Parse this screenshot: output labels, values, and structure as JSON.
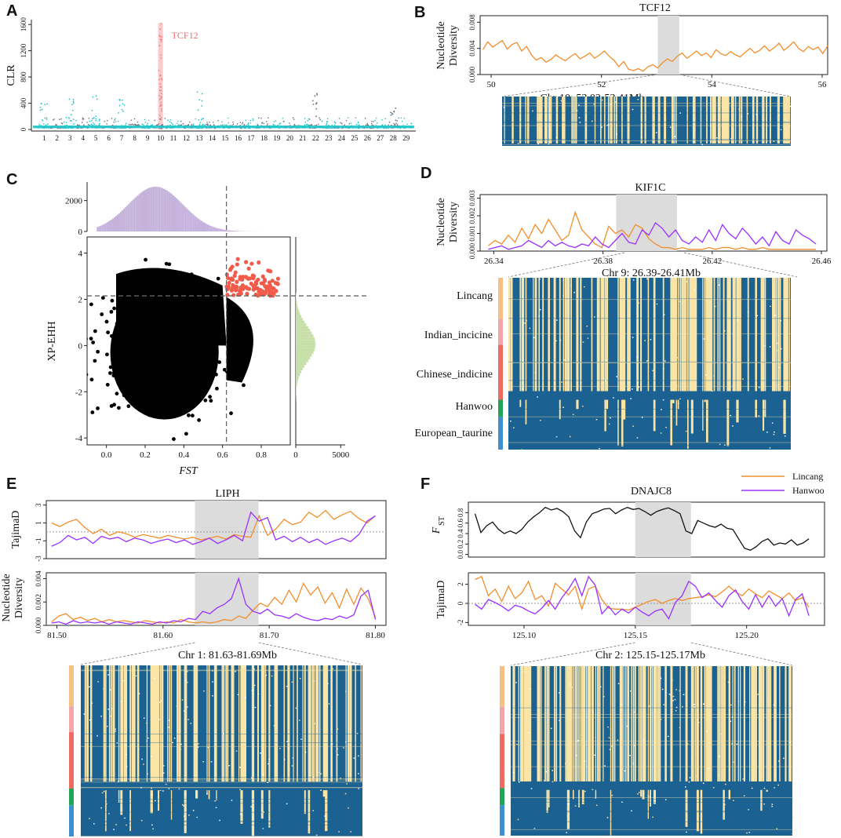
{
  "colors": {
    "lincang": "#f28e2b",
    "hanwoo": "#9b30ff",
    "heat_blue": "#1b6191",
    "heat_yellow": "#fbe5a6",
    "highlight": "#dcdcdc",
    "manhattan_cyan": "#22c5c8",
    "manhattan_grey": "#6b6f80",
    "manhattan_peak": "#f26b6b",
    "scatter_sel": "#f25a4a",
    "hist_purple": "#c5b2dc",
    "hist_green": "#c7dfa8",
    "pop_lincang": "#f6c085",
    "pop_indian": "#f1a7a7",
    "pop_chinese": "#ee6b62",
    "pop_hanwoo": "#1fa555",
    "pop_european": "#3d8fcf"
  },
  "labels": {
    "a": "A",
    "b": "B",
    "c": "C",
    "d": "D",
    "e": "E",
    "f": "F"
  },
  "legend": {
    "lincang": "Lincang",
    "hanwoo": "Hanwoo"
  },
  "chart_data": [
    {
      "panel": "A",
      "type": "scatter",
      "ylabel": "CLR",
      "ylim": [
        0,
        1650
      ],
      "yticks": [
        0,
        400,
        800,
        1200,
        1600
      ],
      "chromosomes": [
        "1",
        "2",
        "3",
        "4",
        "5",
        "6",
        "7",
        "8",
        "9",
        "10",
        "11",
        "12",
        "13",
        "14",
        "15",
        "16",
        "17",
        "18",
        "19",
        "20",
        "21",
        "22",
        "23",
        "24",
        "25",
        "26",
        "27",
        "28",
        "29"
      ],
      "peak": {
        "label": "TCF12",
        "chromosome": "10",
        "value": 1620
      },
      "secondary_peaks": [
        {
          "chromosome": "1",
          "value": 420
        },
        {
          "chromosome": "3",
          "value": 480
        },
        {
          "chromosome": "5",
          "value": 560
        },
        {
          "chromosome": "7",
          "value": 460
        },
        {
          "chromosome": "13",
          "value": 640
        },
        {
          "chromosome": "22",
          "value": 560
        },
        {
          "chromosome": "28",
          "value": 390
        }
      ]
    },
    {
      "panel": "B",
      "type": "line",
      "title": "TCF12",
      "ylabel_lines": [
        "Nucleotide",
        "Diversity"
      ],
      "xlim": [
        49.8,
        56.1
      ],
      "xticks": [
        50,
        52,
        54,
        56
      ],
      "ylim": [
        0,
        0.009
      ],
      "yticks": [
        0.0,
        0.004,
        0.008
      ],
      "ytick_labels": [
        "0.000",
        "0.004",
        "0.008"
      ],
      "highlight": [
        53.02,
        53.41
      ],
      "region_label": "Chr 10: 53.02-53.41Mb",
      "series": [
        {
          "name": "Lincang",
          "values": [
            0.0038,
            0.005,
            0.0042,
            0.0047,
            0.0052,
            0.0039,
            0.0046,
            0.0049,
            0.0036,
            0.0043,
            0.003,
            0.0022,
            0.0026,
            0.0019,
            0.0023,
            0.003,
            0.0025,
            0.0021,
            0.0027,
            0.0032,
            0.0024,
            0.0028,
            0.0033,
            0.0025,
            0.003,
            0.0036,
            0.0028,
            0.0022,
            0.0012,
            0.002,
            0.0008,
            0.0006,
            0.0009,
            0.0005,
            0.0012,
            0.0015,
            0.001,
            0.0018,
            0.0024,
            0.002,
            0.0028,
            0.0033,
            0.0025,
            0.003,
            0.0036,
            0.0029,
            0.0033,
            0.0026,
            0.0038,
            0.0032,
            0.0029,
            0.0035,
            0.003,
            0.0027,
            0.0034,
            0.004,
            0.0033,
            0.0037,
            0.0044,
            0.0036,
            0.0041,
            0.0048,
            0.0037,
            0.0043,
            0.005,
            0.004,
            0.0035,
            0.0043,
            0.0038,
            0.0042,
            0.0032,
            0.0044
          ]
        }
      ]
    },
    {
      "panel": "C",
      "type": "scatter",
      "xlabel": "FST",
      "ylabel": "XP-EHH",
      "xlim": [
        -0.1,
        0.95
      ],
      "ylim": [
        -4.3,
        4.7
      ],
      "xticks": [
        0.0,
        0.2,
        0.4,
        0.6,
        0.8
      ],
      "xtick_labels": [
        "0.0",
        "0.2",
        "0.4",
        "0.6",
        "0.8"
      ],
      "yticks": [
        -4,
        -2,
        0,
        2,
        4
      ],
      "ytick_labels": [
        "-4",
        "-2",
        "0",
        "2",
        "4"
      ],
      "thresholds": {
        "fst": 0.62,
        "xpehh": 2.15
      },
      "top_hist": {
        "ylim": [
          0,
          3200
        ],
        "yticks": [
          0,
          2000
        ],
        "ytick_labels": [
          "0",
          "2000"
        ],
        "peak_count": 2900,
        "peak_fst": 0.25
      },
      "right_hist": {
        "xlim": [
          0,
          5500
        ],
        "xticks": [
          0,
          5000
        ],
        "xtick_labels": [
          "0",
          "5000"
        ],
        "peak_count": 2200,
        "peak_xpehh": 0.0
      }
    },
    {
      "panel": "D",
      "type": "line",
      "title": "KIF1C",
      "ylabel_lines": [
        "Nucleotide",
        "Diversity"
      ],
      "xlim": [
        26.335,
        26.462
      ],
      "xticks": [
        26.34,
        26.38,
        26.42,
        26.46
      ],
      "xtick_labels": [
        "26.34",
        "26.38",
        "26.42",
        "26.46"
      ],
      "ylim": [
        0,
        0.0032
      ],
      "yticks": [
        0.0,
        0.001,
        0.002,
        0.003
      ],
      "ytick_labels": [
        "0.000",
        "0.001",
        "0.002",
        "0.003"
      ],
      "highlight": [
        26.39,
        26.41
      ],
      "region_label": "Chr 9: 26.39-26.41Mb",
      "populations": [
        "Lincang",
        "Indian_incicine",
        "Chinese_indicine",
        "Hanwoo",
        "European_taurine"
      ],
      "series": [
        {
          "name": "Lincang",
          "values": [
            0.0003,
            0.0006,
            0.0004,
            0.0009,
            0.0005,
            0.0013,
            0.0007,
            0.0015,
            0.001,
            0.0018,
            0.0012,
            0.0006,
            0.0009,
            0.0022,
            0.0012,
            0.0008,
            0.0004,
            0.0002,
            0.0014,
            0.001,
            0.0012,
            0.0008,
            0.0015,
            0.0013,
            0.0007,
            0.0004,
            0.0002,
            0.0002,
            0.0001,
            0.0002,
            0.0001,
            0.0001,
            0.0001,
            0.0002,
            0.0001,
            0.0002,
            0.0002,
            0.0001,
            0.0002,
            0.0001,
            0.0001,
            0.0002,
            0.0001,
            0.0001,
            0.0001,
            0.0001,
            0.0001,
            0.0001,
            0.0001,
            0.0001
          ]
        },
        {
          "name": "Hanwoo",
          "values": [
            0.0001,
            0.0002,
            0.0003,
            0.0001,
            0.0002,
            0.0003,
            0.0006,
            0.0004,
            0.0002,
            0.0006,
            0.0003,
            0.0005,
            0.0003,
            0.0002,
            0.0004,
            0.0003,
            0.0008,
            0.0004,
            0.0002,
            0.0006,
            0.001,
            0.0005,
            0.0004,
            0.0012,
            0.0009,
            0.0016,
            0.0013,
            0.0008,
            0.0012,
            0.0006,
            0.0004,
            0.0008,
            0.0005,
            0.0012,
            0.0006,
            0.0015,
            0.001,
            0.0007,
            0.0013,
            0.0009,
            0.0004,
            0.0008,
            0.0003,
            0.0011,
            0.0006,
            0.0004,
            0.0012,
            0.0009,
            0.0007,
            0.0004
          ]
        }
      ]
    },
    {
      "panel": "E",
      "type": "line",
      "title": "LIPH",
      "xlim": [
        81.49,
        81.81
      ],
      "xticks": [
        81.5,
        81.6,
        81.7,
        81.8
      ],
      "xtick_labels": [
        "81.50",
        "81.60",
        "81.70",
        "81.80"
      ],
      "highlight": [
        81.63,
        81.69
      ],
      "region_label": "Chr 1: 81.63-81.69Mb",
      "tracks": [
        {
          "ylabel": "TajimaD",
          "ylim": [
            -3,
            3.5
          ],
          "yticks": [
            -3,
            -1,
            1,
            3
          ],
          "ytick_labels": [
            "-3",
            "-1",
            "1",
            "3"
          ],
          "ref": 0,
          "series": [
            {
              "name": "Lincang",
              "values": [
                1.0,
                0.6,
                1.1,
                1.4,
                0.5,
                -0.2,
                0.3,
                -0.4,
                0.0,
                -0.2,
                -0.6,
                -0.3,
                -0.5,
                -0.7,
                -0.4,
                -0.6,
                -0.8,
                -0.6,
                -0.9,
                -0.7,
                -0.5,
                -0.8,
                -0.3,
                -0.5,
                -0.6,
                1.8,
                -0.4,
                0.3,
                1.4,
                0.8,
                1.1,
                2.2,
                1.6,
                2.4,
                1.4,
                1.9,
                2.3,
                1.5,
                1.0,
                1.8
              ]
            },
            {
              "name": "Hanwoo",
              "values": [
                -1.6,
                -1.2,
                -0.4,
                -0.9,
                -0.6,
                -1.3,
                -0.5,
                -0.8,
                -0.6,
                -1.1,
                -0.7,
                -0.9,
                -1.3,
                -1.0,
                -0.8,
                -1.2,
                -0.9,
                -1.4,
                -1.1,
                -0.7,
                -1.3,
                -0.9,
                -0.4,
                -1.0,
                2.2,
                1.2,
                1.6,
                -0.9,
                -0.5,
                -1.1,
                -0.6,
                -1.2,
                -0.8,
                -1.4,
                -1.0,
                -0.7,
                -1.1,
                -0.3,
                1.2,
                1.8
              ]
            }
          ]
        },
        {
          "ylabel_lines": [
            "Nucleotide",
            "Diversity"
          ],
          "ylim": [
            0,
            0.0045
          ],
          "yticks": [
            0.0,
            0.002,
            0.004
          ],
          "ytick_labels": [
            "0.000",
            "0.002",
            "0.004"
          ],
          "series": [
            {
              "name": "Lincang",
              "values": [
                0.0003,
                0.0008,
                0.001,
                0.0005,
                0.0007,
                0.0004,
                0.0006,
                0.0003,
                0.0005,
                0.0003,
                0.0004,
                0.0003,
                0.0002,
                0.0004,
                0.0003,
                0.0002,
                0.0003,
                0.0002,
                0.0005,
                0.0003,
                0.0002,
                0.0003,
                0.0002,
                0.0003,
                0.0005,
                0.0004,
                0.0008,
                0.0006,
                0.0013,
                0.0019,
                0.0016,
                0.0024,
                0.0018,
                0.003,
                0.002,
                0.0036,
                0.0026,
                0.0033,
                0.0019,
                0.0028,
                0.0015,
                0.0031,
                0.0018,
                0.0032,
                0.0023,
                0.0007
              ]
            },
            {
              "name": "Hanwoo",
              "values": [
                0.0002,
                0.0003,
                0.0001,
                0.0004,
                0.0002,
                0.0003,
                0.0002,
                0.0003,
                0.0001,
                0.0003,
                0.0002,
                0.0001,
                0.0003,
                0.0002,
                0.0001,
                0.0003,
                0.0002,
                0.0004,
                0.0003,
                0.0006,
                0.0005,
                0.0012,
                0.001,
                0.0015,
                0.0018,
                0.0023,
                0.004,
                0.0018,
                0.0012,
                0.001,
                0.0014,
                0.0009,
                0.0008,
                0.0006,
                0.001,
                0.0007,
                0.0005,
                0.0004,
                0.0006,
                0.0005,
                0.0008,
                0.0006,
                0.0009,
                0.0025,
                0.003,
                0.0005
              ]
            }
          ]
        }
      ]
    },
    {
      "panel": "F",
      "type": "line",
      "title": "DNAJC8",
      "xlim": [
        125.075,
        125.235
      ],
      "xticks": [
        125.1,
        125.15,
        125.2
      ],
      "xtick_labels": [
        "125.10",
        "125.15",
        "125.20"
      ],
      "highlight": [
        125.15,
        125.175
      ],
      "region_label": "Chr 2: 125.15-125.17Mb",
      "tracks": [
        {
          "ylabel": "FST",
          "ylim": [
            -0.05,
            1.0
          ],
          "yticks": [
            0.0,
            0.2,
            0.4,
            0.6,
            0.8
          ],
          "ytick_labels": [
            "0.0",
            "0.2",
            "0.4",
            "0.6",
            "0.8"
          ],
          "series": [
            {
              "name": "FST",
              "color": "#111111",
              "values": [
                0.78,
                0.42,
                0.55,
                0.62,
                0.48,
                0.4,
                0.45,
                0.4,
                0.48,
                0.62,
                0.72,
                0.8,
                0.9,
                0.85,
                0.88,
                0.82,
                0.72,
                0.45,
                0.32,
                0.62,
                0.78,
                0.82,
                0.87,
                0.88,
                0.78,
                0.85,
                0.9,
                0.86,
                0.88,
                0.82,
                0.75,
                0.82,
                0.86,
                0.89,
                0.84,
                0.78,
                0.45,
                0.4,
                0.65,
                0.6,
                0.55,
                0.52,
                0.58,
                0.5,
                0.48,
                0.3,
                0.12,
                0.08,
                0.15,
                0.25,
                0.3,
                0.18,
                0.22,
                0.2,
                0.28,
                0.18,
                0.22,
                0.3
              ]
            }
          ]
        },
        {
          "ylabel": "TajimaD",
          "ylim": [
            -2.3,
            3.2
          ],
          "yticks": [
            -2,
            0,
            2
          ],
          "ytick_labels": [
            "-2",
            "0",
            "2"
          ],
          "ref": 0,
          "series": [
            {
              "name": "Lincang",
              "values": [
                2.5,
                2.8,
                0.8,
                1.5,
                0.2,
                1.8,
                0.5,
                1.1,
                2.3,
                0.4,
                0.8,
                -0.3,
                2.1,
                1.5,
                0.9,
                1.8,
                -0.6,
                1.5,
                1.8,
                0.4,
                -0.5,
                -0.6,
                -0.6,
                -0.7,
                -0.4,
                -0.1,
                0.2,
                0.4,
                0.0,
                0.3,
                0.5,
                0.3,
                0.5,
                0.6,
                0.7,
                0.9,
                0.7,
                1.2,
                1.8,
                1.2,
                0.8,
                1.5,
                1.0,
                0.6,
                1.3,
                0.9,
                0.5,
                1.1,
                0.3,
                0.6,
                -0.4
              ]
            },
            {
              "name": "Hanwoo",
              "values": [
                -0.1,
                -0.6,
                0.4,
                0.1,
                -0.3,
                -0.8,
                -0.2,
                -0.4,
                -0.8,
                -1.1,
                -0.5,
                0.3,
                -0.6,
                0.6,
                1.5,
                2.6,
                0.8,
                2.8,
                1.9,
                -1.1,
                -0.3,
                -1.2,
                -0.6,
                -1.0,
                -0.4,
                -0.9,
                -1.3,
                -0.8,
                -0.6,
                -1.6,
                0.1,
                0.8,
                2.3,
                1.8,
                0.6,
                1.1,
                0.3,
                -0.4,
                0.8,
                1.4,
                0.2,
                -0.6,
                0.9,
                -0.4,
                0.8,
                -0.3,
                0.5,
                -1.3,
                0.4,
                1.0,
                -1.3
              ]
            }
          ]
        }
      ]
    }
  ]
}
